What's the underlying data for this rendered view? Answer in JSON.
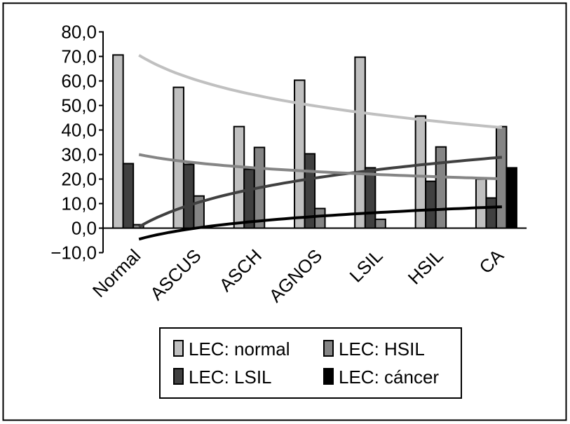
{
  "chart_data": {
    "type": "bar",
    "title": "",
    "xlabel": "",
    "ylabel": "",
    "ylim": [
      -10,
      80
    ],
    "yticks": [
      "-10,0",
      "0,0",
      "10,0",
      "20,0",
      "30,0",
      "40,0",
      "50,0",
      "60,0",
      "70,0",
      "80,0"
    ],
    "ytick_values": [
      -10,
      0,
      10,
      20,
      30,
      40,
      50,
      60,
      70,
      80
    ],
    "grid": false,
    "legend_position": "bottom",
    "categories": [
      "Normal",
      "ASCUS",
      "ASCH",
      "AGNOS",
      "LSIL",
      "HSIL",
      "CA"
    ],
    "series": [
      {
        "name": "LEC: normal",
        "color": "#c0c0c0",
        "values": [
          70.6,
          57.4,
          41.4,
          60.3,
          69.7,
          45.7,
          20.0
        ]
      },
      {
        "name": "LEC: LSIL",
        "color": "#404040",
        "values": [
          26.3,
          26.0,
          24.0,
          30.3,
          24.6,
          19.1,
          12.3
        ]
      },
      {
        "name": "LEC: HSIL",
        "color": "#858585",
        "values": [
          1.4,
          13.1,
          32.9,
          8.0,
          3.6,
          33.1,
          41.4
        ]
      },
      {
        "name": "LEC: cáncer",
        "color": "#000000",
        "values": [
          0,
          0,
          0,
          0,
          0,
          0,
          24.6
        ]
      }
    ],
    "trendlines": [
      {
        "series": "LEC: normal",
        "type": "logarithmic",
        "color": "#c0c0c0",
        "values": [
          70.5,
          60.0,
          53.8,
          49.4,
          46.0,
          43.3,
          41.0
        ]
      },
      {
        "series": "LEC: LSIL",
        "type": "logarithmic",
        "color": "#404040",
        "values": [
          0.5,
          10.6,
          16.5,
          20.7,
          24.0,
          26.7,
          28.9
        ]
      },
      {
        "series": "LEC: HSIL",
        "type": "logarithmic",
        "color": "#858585",
        "values": [
          30.0,
          26.5,
          24.4,
          22.9,
          21.8,
          20.9,
          20.1
        ]
      },
      {
        "series": "LEC: cáncer",
        "type": "logarithmic",
        "color": "#000000",
        "values": [
          -4.5,
          0.2,
          3.0,
          4.9,
          6.4,
          7.7,
          8.7
        ]
      }
    ]
  }
}
